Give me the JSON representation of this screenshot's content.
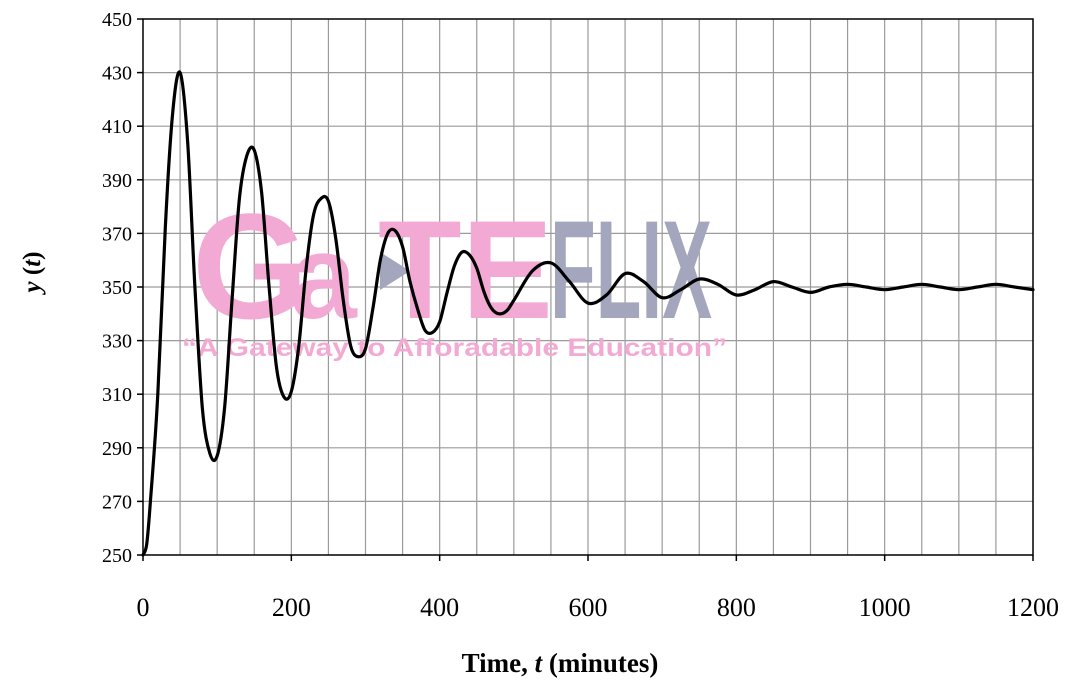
{
  "chart_data": {
    "type": "line",
    "title": "",
    "xlabel_plain": "Time, ",
    "xlabel_italic": "t",
    "xlabel_suffix": " (minutes)",
    "ylabel_italic_1": "y",
    "ylabel_paren_open": " (",
    "ylabel_italic_2": "t",
    "ylabel_paren_close": ")",
    "xlim": [
      0,
      1200
    ],
    "ylim": [
      250,
      450
    ],
    "x_ticks": [
      0,
      200,
      400,
      600,
      800,
      1000,
      1200
    ],
    "y_ticks": [
      250,
      270,
      290,
      310,
      330,
      350,
      370,
      390,
      410,
      430,
      450
    ],
    "x_minor_step": 50,
    "grid": true,
    "legend": "none",
    "line_color": "#000000",
    "series": [
      {
        "x": [
          0,
          5,
          10,
          20,
          30,
          40,
          50,
          60,
          70,
          80,
          90,
          100,
          110,
          120,
          130,
          140,
          150,
          160,
          170,
          180,
          190,
          200,
          210,
          220,
          230,
          240,
          250,
          260,
          270,
          280,
          290,
          300,
          310,
          320,
          330,
          340,
          350,
          360,
          370,
          380,
          390,
          400,
          410,
          420,
          430,
          440,
          450,
          460,
          470,
          480,
          490,
          500,
          525,
          550,
          575,
          600,
          625,
          650,
          675,
          700,
          725,
          750,
          775,
          800,
          825,
          850,
          875,
          900,
          925,
          950,
          975,
          1000,
          1025,
          1050,
          1075,
          1100,
          1125,
          1150,
          1175,
          1200
        ],
        "y": [
          250,
          254,
          270,
          310,
          372,
          415,
          430,
          405,
          350,
          305,
          288,
          287,
          305,
          345,
          383,
          399,
          401,
          385,
          350,
          320,
          309,
          311,
          328,
          357,
          377,
          383,
          382,
          368,
          345,
          328,
          324,
          327,
          342,
          360,
          370,
          371,
          365,
          352,
          342,
          334,
          333,
          337,
          348,
          358,
          363,
          362,
          357,
          348,
          342,
          340,
          341,
          345,
          356,
          359,
          352,
          344,
          347,
          355,
          352,
          346,
          349,
          353,
          351,
          347,
          349,
          352,
          350,
          348,
          350,
          351,
          350,
          349,
          350,
          351,
          350,
          349,
          350,
          351,
          350,
          349
        ]
      }
    ]
  },
  "watermark": {
    "brand_part1": "G",
    "brand_part2": "a",
    "brand_part3": "TE",
    "brand_part4": "FLIX",
    "tagline": "“A Gateway to Afforadable Education”",
    "pink": "#f2a9d3",
    "gray": "#a3a6bd"
  }
}
